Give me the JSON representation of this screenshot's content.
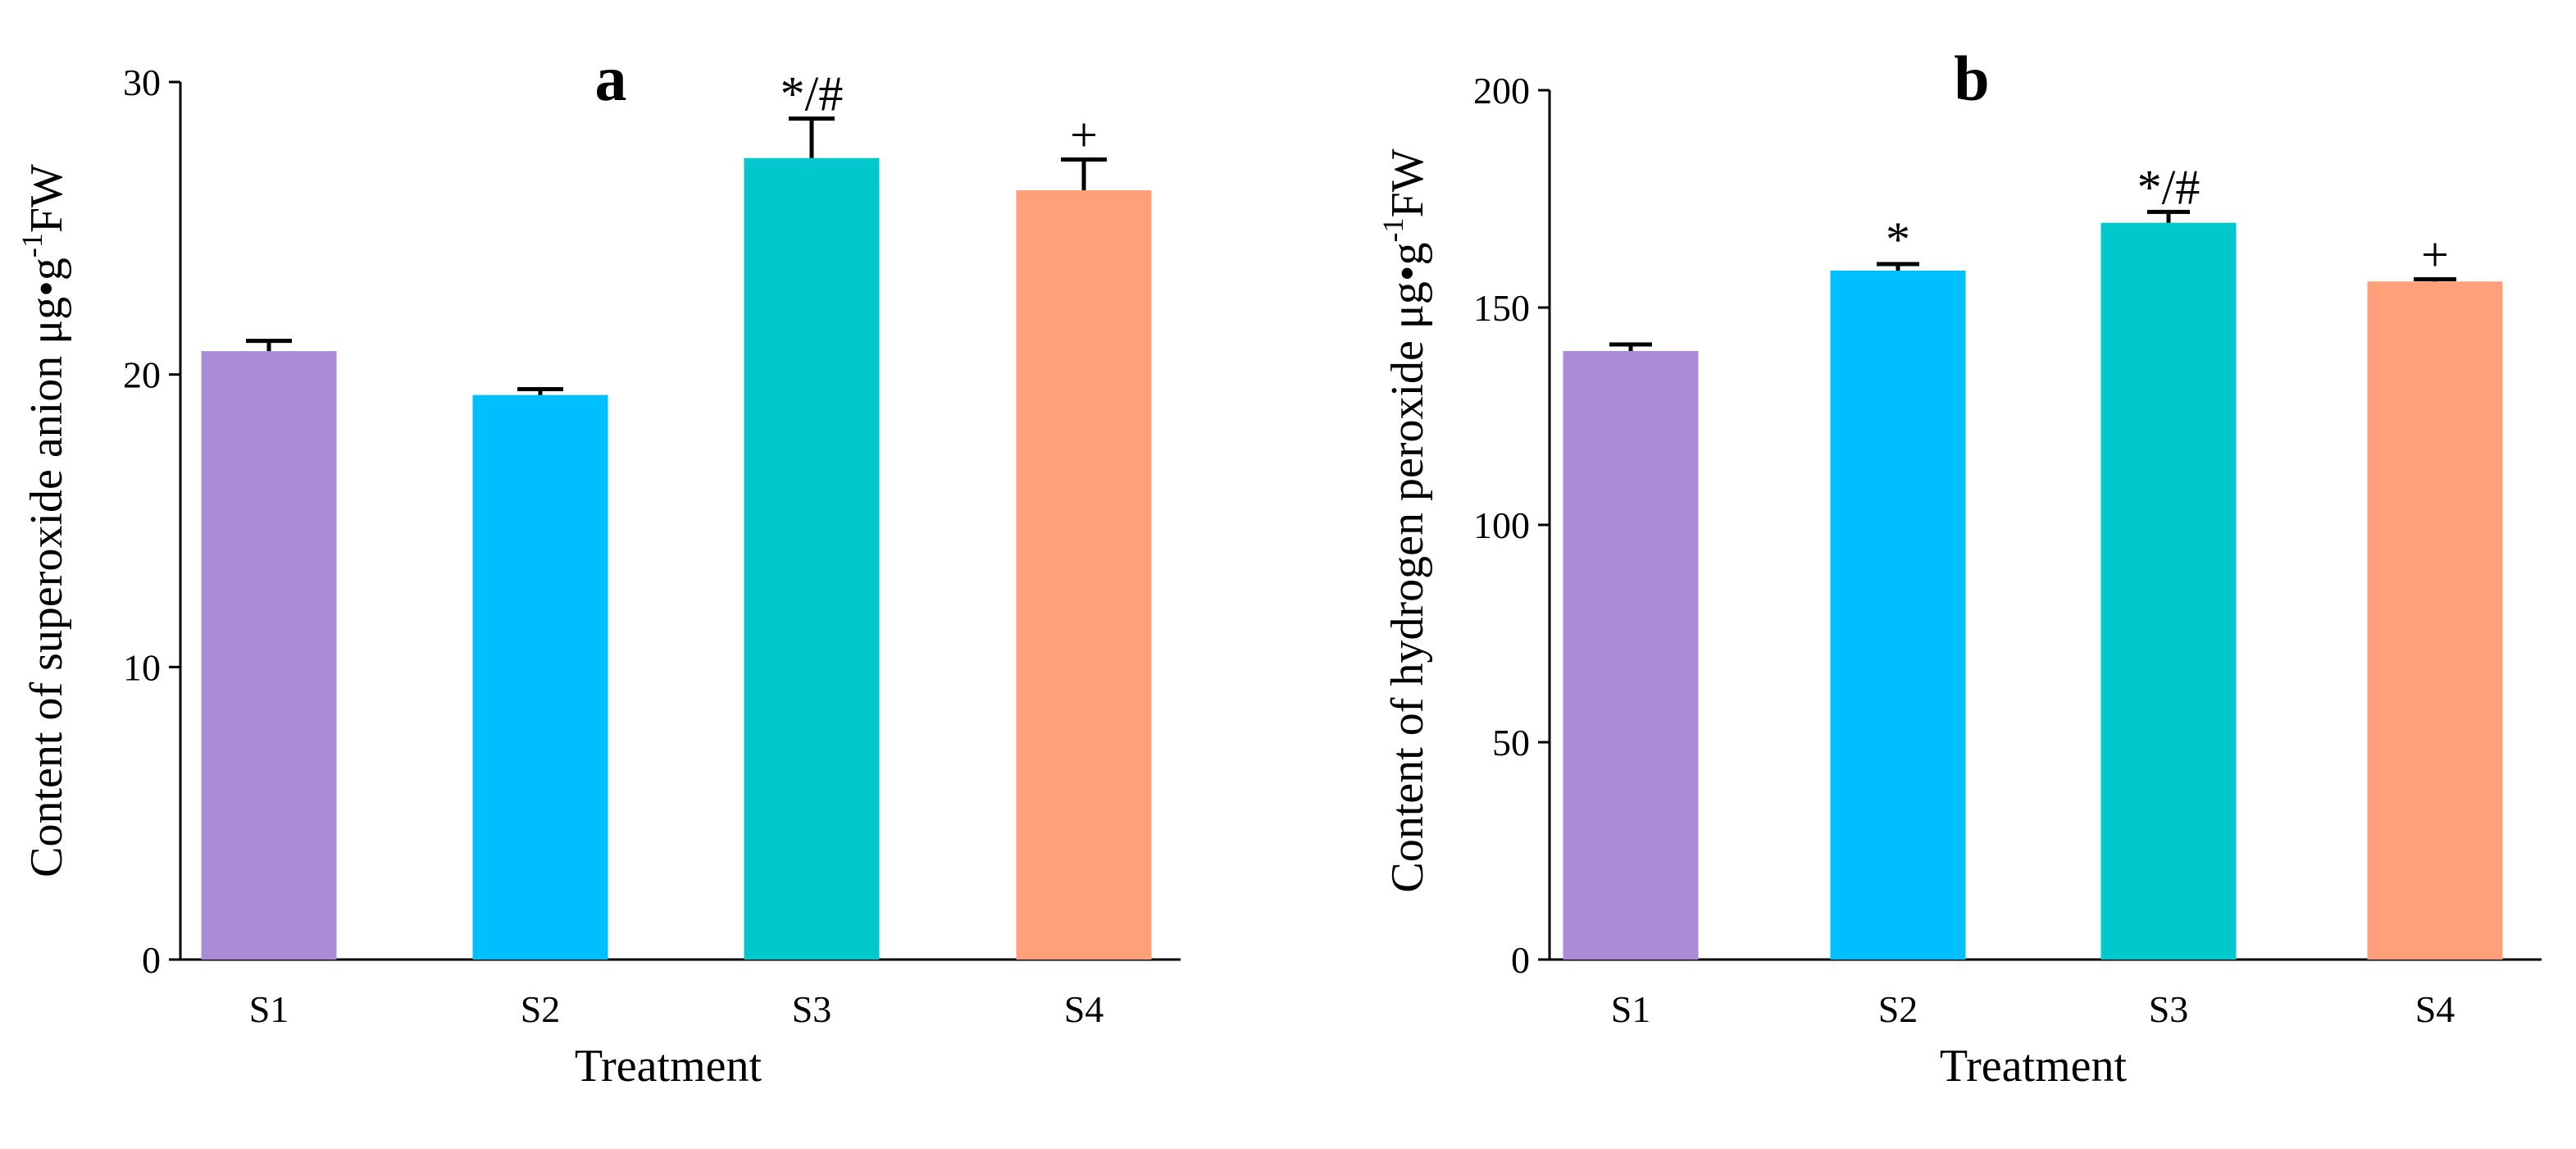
{
  "figure": {
    "colors": {
      "S1": "#ab8bd6",
      "S2": "#00bfff",
      "S3": "#00c8cc",
      "S4": "#ffa07a",
      "axis": "#000000",
      "background": "#ffffff"
    }
  },
  "chart_data": [
    {
      "type": "bar",
      "panel_label": "a",
      "title": "",
      "xlabel": "Treatment",
      "ylabel_main": "Content of superoxide anion μg•g",
      "ylabel_sup": "-1",
      "ylabel_tail": "FW",
      "categories": [
        "S1",
        "S2",
        "S3",
        "S4"
      ],
      "values": [
        20.8,
        19.3,
        27.4,
        26.3
      ],
      "errors": [
        0.35,
        0.2,
        1.35,
        1.05
      ],
      "significance": [
        "",
        "",
        "*/#",
        "+"
      ],
      "ylim": [
        0,
        30
      ],
      "yticks": [
        0,
        10,
        20,
        30
      ],
      "ytick_labels": [
        "0",
        "10",
        "20",
        "30"
      ],
      "grid": false
    },
    {
      "type": "bar",
      "panel_label": "b",
      "title": "",
      "xlabel": "Treatment",
      "ylabel_main": "Content of hydrogen peroxide μg•g",
      "ylabel_sup": "-1",
      "ylabel_tail": "FW",
      "categories": [
        "S1",
        "S2",
        "S3",
        "S4"
      ],
      "values": [
        140,
        158.5,
        169.5,
        156
      ],
      "errors": [
        1.5,
        1.5,
        2.5,
        0.5
      ],
      "significance": [
        "",
        "*",
        "*/#",
        "+"
      ],
      "ylim": [
        0,
        200
      ],
      "yticks": [
        0,
        50,
        100,
        150,
        200
      ],
      "ytick_labels": [
        "0",
        "50",
        "100",
        "150",
        "200"
      ],
      "grid": false
    }
  ]
}
